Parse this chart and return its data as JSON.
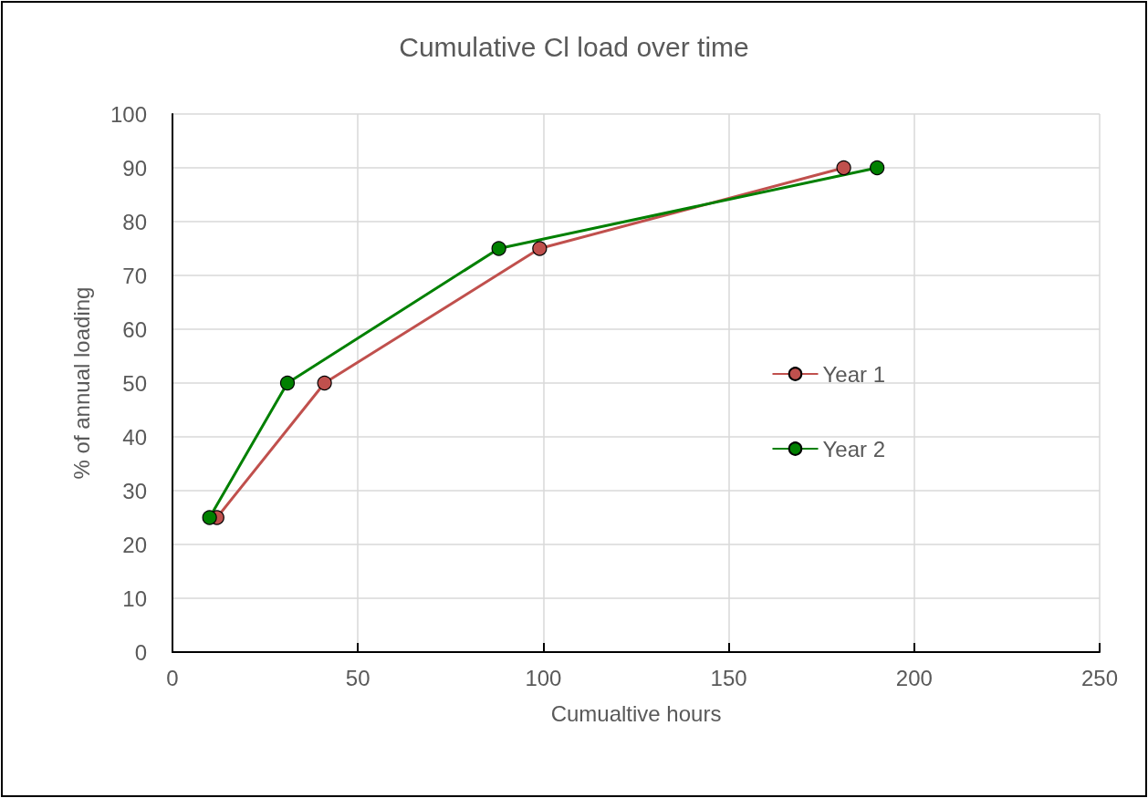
{
  "chart_data": {
    "type": "line",
    "title": "Cumulative Cl load over time",
    "xlabel": "Cumualtive hours",
    "ylabel": "% of annual loading",
    "series": [
      {
        "name": "Year 1",
        "color": "#c0504d",
        "x": [
          12,
          41,
          99,
          181
        ],
        "values": [
          25,
          50,
          75,
          90
        ]
      },
      {
        "name": "Year 2",
        "color": "#008000",
        "x": [
          10,
          31,
          88,
          190
        ],
        "values": [
          25,
          50,
          75,
          90
        ]
      }
    ],
    "xlim": [
      0,
      250
    ],
    "xticks": [
      0,
      50,
      100,
      150,
      200,
      250
    ],
    "ylim": [
      0,
      100
    ],
    "yticks": [
      0,
      10,
      20,
      30,
      40,
      50,
      60,
      70,
      80,
      90,
      100
    ],
    "grid": true,
    "legend": "right",
    "marker": "circle",
    "line_style": "solid"
  }
}
